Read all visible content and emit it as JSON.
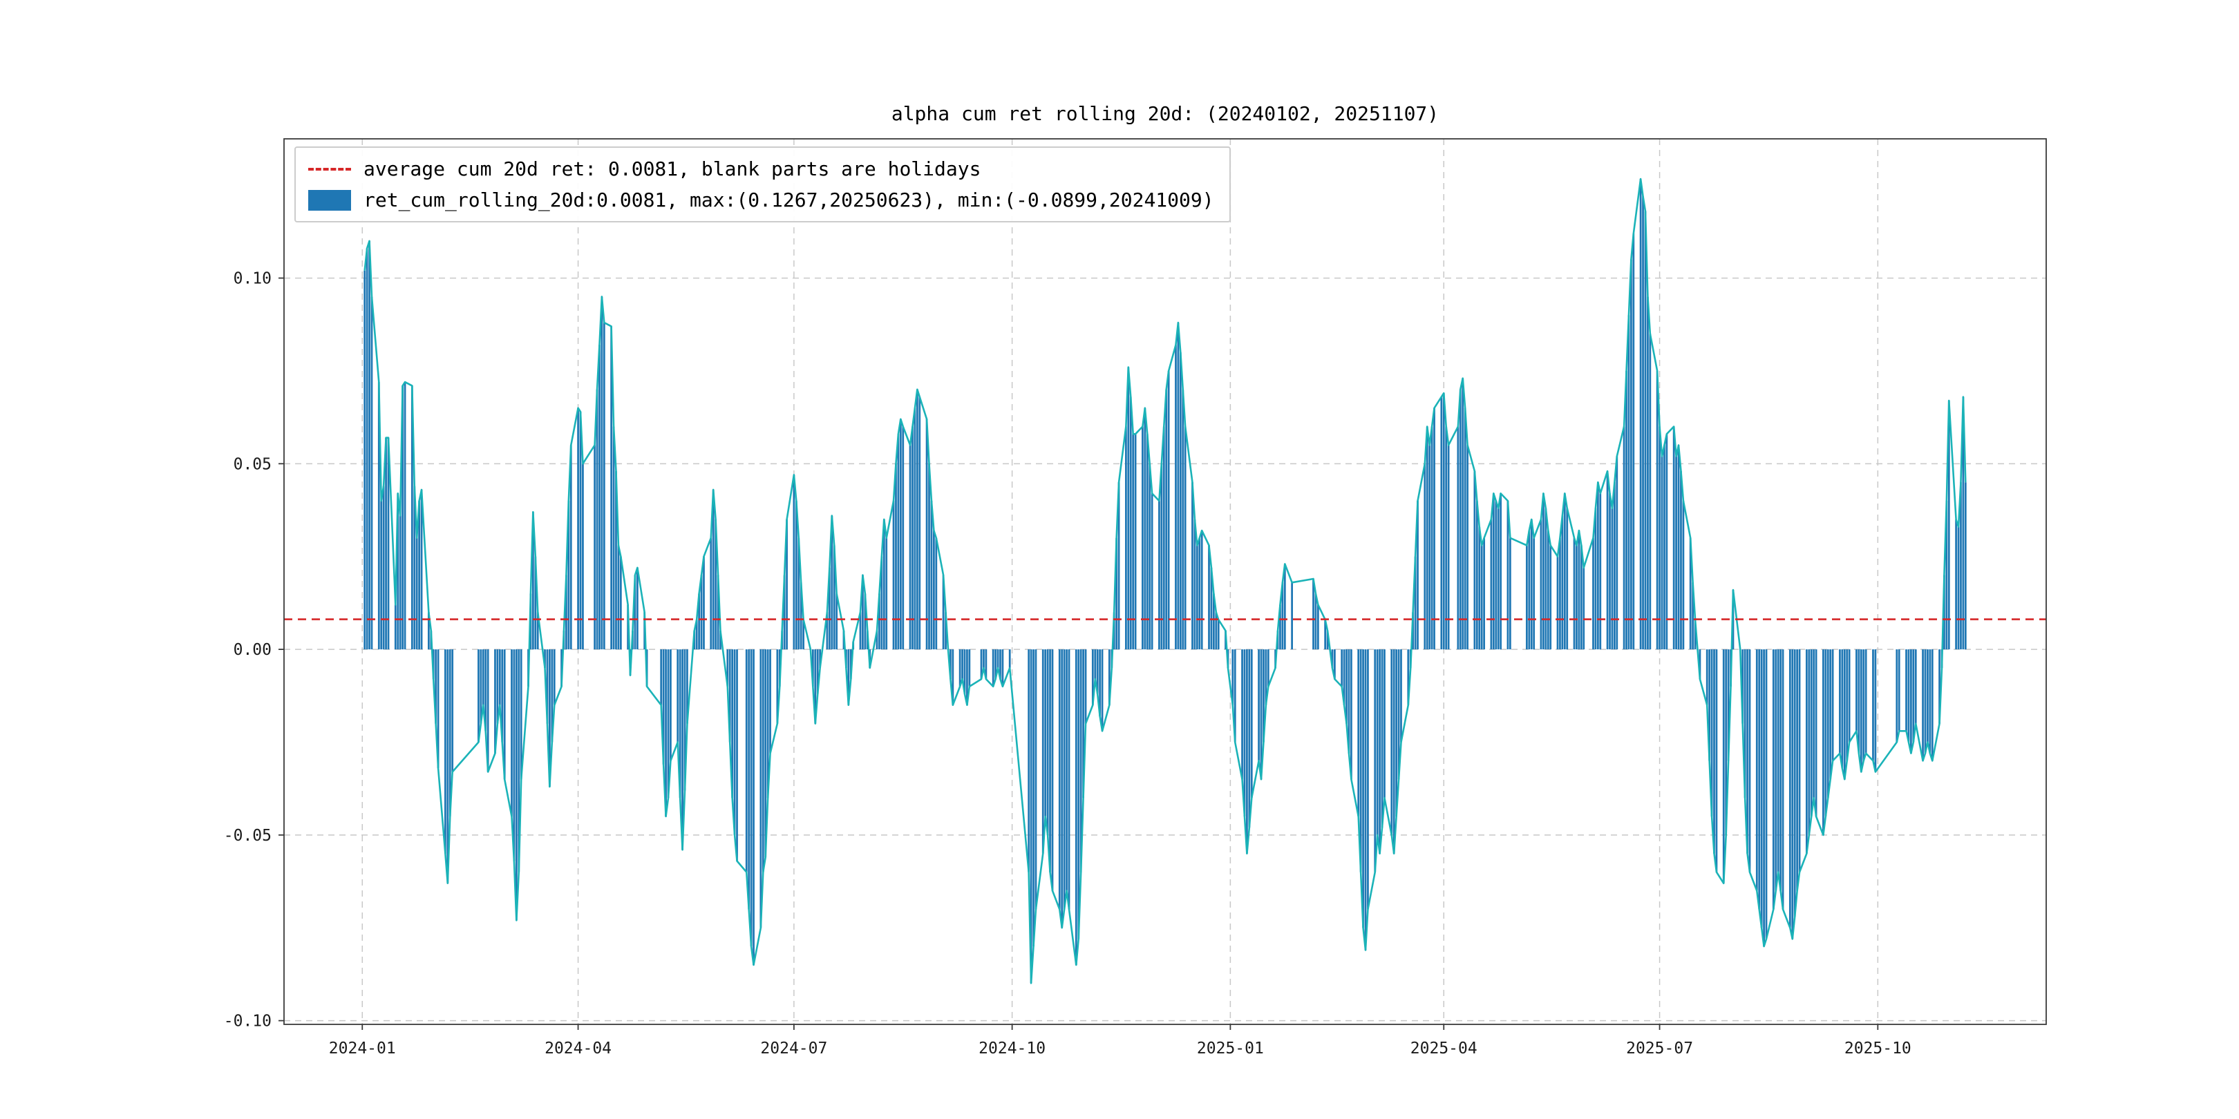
{
  "figure": {
    "background": "#ffffff"
  },
  "legend": {
    "entries": [
      {
        "type": "dashed-line",
        "color": "#d62728",
        "label": "average cum 20d ret: 0.0081, blank parts are holidays"
      },
      {
        "type": "bar",
        "color": "#1f77b4",
        "label": "ret_cum_rolling_20d:0.0081, max:(0.1267,20250623), min:(-0.0899,20241009)"
      }
    ]
  },
  "chart_data": {
    "type": "bar",
    "title": "alpha cum ret rolling 20d: (20240102, 20251107)",
    "series": [
      {
        "name": "ret_cum_rolling_20d",
        "render": "bar",
        "color": "#1f77b4"
      },
      {
        "name": "ret_cum_rolling_20d",
        "render": "line",
        "color": "#1bb3b8"
      }
    ],
    "average_line": {
      "value": 0.0081,
      "color": "#d62728",
      "style": "dashed"
    },
    "stats": {
      "average": 0.0081,
      "max": {
        "value": 0.1267,
        "date": "20250623"
      },
      "min": {
        "value": -0.0899,
        "date": "20241009"
      }
    },
    "date_range": {
      "start": "20240102",
      "end": "20251107"
    },
    "x_base_date": "2024-01-01",
    "xlim_days": [
      -33,
      710
    ],
    "ylim": [
      -0.101,
      0.1375
    ],
    "grid": true,
    "legend_position": "upper-left",
    "yticks": [
      {
        "value": 0.1,
        "label": "0.10"
      },
      {
        "value": 0.05,
        "label": "0.05"
      },
      {
        "value": 0.0,
        "label": "0.00"
      },
      {
        "value": -0.05,
        "label": "-0.05"
      },
      {
        "value": -0.1,
        "label": "-0.10"
      }
    ],
    "xticks": [
      {
        "day": 0,
        "label": "2024-01"
      },
      {
        "day": 91,
        "label": "2024-04"
      },
      {
        "day": 182,
        "label": "2024-07"
      },
      {
        "day": 274,
        "label": "2024-10"
      },
      {
        "day": 366,
        "label": "2025-01"
      },
      {
        "day": 456,
        "label": "2025-04"
      },
      {
        "day": 547,
        "label": "2025-07"
      },
      {
        "day": 639,
        "label": "2025-10"
      }
    ],
    "weekly_values_note": "97 weeks starting Monday 2024-01-01; 5 values per week (Mon-Fri); null = holiday/no trading (blank parts)",
    "weekly_values": [
      [
        null,
        0.102,
        0.108,
        0.11,
        0.095
      ],
      [
        0.072,
        0.04,
        0.044,
        0.057,
        0.057
      ],
      [
        0.012,
        0.042,
        0.036,
        0.071,
        0.072
      ],
      [
        0.071,
        0.044,
        0.03,
        0.04,
        0.043
      ],
      [
        0.01,
        0.005,
        -0.008,
        -0.02,
        -0.032
      ],
      [
        -0.055,
        -0.063,
        -0.045,
        -0.033,
        null
      ],
      [
        null,
        null,
        null,
        null,
        null
      ],
      [
        -0.025,
        -0.02,
        -0.015,
        -0.022,
        -0.033
      ],
      [
        -0.028,
        -0.02,
        -0.015,
        -0.025,
        -0.035
      ],
      [
        -0.045,
        -0.057,
        -0.073,
        -0.06,
        -0.035
      ],
      [
        -0.01,
        0.015,
        0.037,
        0.025,
        0.01
      ],
      [
        -0.005,
        -0.02,
        -0.037,
        -0.025,
        -0.015
      ],
      [
        -0.01,
        0.005,
        0.02,
        0.04,
        0.055
      ],
      [
        0.065,
        0.064,
        0.05,
        null,
        null
      ],
      [
        0.055,
        0.07,
        0.082,
        0.095,
        0.088
      ],
      [
        0.087,
        0.06,
        0.048,
        0.028,
        0.025
      ],
      [
        0.012,
        -0.007,
        0.005,
        0.02,
        0.022
      ],
      [
        0.01,
        -0.01,
        null,
        null,
        null
      ],
      [
        -0.015,
        -0.031,
        -0.045,
        -0.04,
        -0.03
      ],
      [
        -0.025,
        -0.04,
        -0.054,
        -0.038,
        -0.02
      ],
      [
        0.005,
        0.008,
        0.015,
        0.02,
        0.025
      ],
      [
        0.03,
        0.043,
        0.035,
        0.02,
        0.005
      ],
      [
        -0.01,
        -0.025,
        -0.04,
        -0.05,
        -0.057
      ],
      [
        null,
        -0.06,
        -0.07,
        -0.08,
        -0.085
      ],
      [
        -0.075,
        -0.06,
        -0.056,
        -0.04,
        -0.028
      ],
      [
        -0.02,
        -0.01,
        0.005,
        0.02,
        0.035
      ],
      [
        0.047,
        0.04,
        0.03,
        0.018,
        0.008
      ],
      [
        0.0,
        -0.01,
        -0.02,
        -0.012,
        -0.005
      ],
      [
        0.01,
        0.022,
        0.036,
        0.028,
        0.015
      ],
      [
        0.005,
        -0.005,
        -0.015,
        -0.008,
        0.002
      ],
      [
        0.01,
        0.02,
        0.015,
        0.005,
        -0.005
      ],
      [
        0.005,
        0.015,
        0.025,
        0.035,
        0.03
      ],
      [
        0.04,
        0.05,
        0.058,
        0.062,
        0.06
      ],
      [
        0.055,
        0.06,
        0.065,
        0.07,
        0.068
      ],
      [
        0.062,
        0.05,
        0.04,
        0.032,
        0.03
      ],
      [
        0.02,
        0.01,
        0.0,
        -0.008,
        -0.015
      ],
      [
        -0.01,
        -0.008,
        -0.012,
        -0.015,
        -0.01
      ],
      [
        null,
        null,
        -0.008,
        -0.005,
        -0.008
      ],
      [
        -0.01,
        -0.008,
        -0.005,
        -0.008,
        -0.01
      ],
      [
        -0.005,
        null,
        null,
        null,
        null
      ],
      [
        null,
        -0.06,
        -0.0899,
        -0.08,
        -0.07
      ],
      [
        -0.055,
        -0.045,
        -0.05,
        -0.06,
        -0.065
      ],
      [
        -0.07,
        -0.075,
        -0.07,
        -0.065,
        -0.07
      ],
      [
        -0.085,
        -0.078,
        -0.06,
        -0.04,
        -0.02
      ],
      [
        -0.015,
        -0.008,
        -0.012,
        -0.018,
        -0.022
      ],
      [
        -0.015,
        -0.005,
        0.01,
        0.03,
        0.045
      ],
      [
        0.06,
        0.076,
        0.068,
        0.058,
        0.058
      ],
      [
        0.06,
        0.065,
        0.058,
        0.05,
        0.042
      ],
      [
        0.04,
        0.05,
        0.06,
        0.07,
        0.075
      ],
      [
        0.082,
        0.088,
        0.08,
        0.07,
        0.06
      ],
      [
        0.045,
        0.035,
        0.028,
        0.03,
        0.032
      ],
      [
        0.028,
        0.022,
        0.015,
        0.01,
        0.008
      ],
      [
        0.005,
        -0.005,
        null,
        -0.015,
        -0.025
      ],
      [
        -0.035,
        -0.045,
        -0.055,
        -0.048,
        -0.04
      ],
      [
        -0.03,
        -0.035,
        -0.025,
        -0.015,
        -0.01
      ],
      [
        -0.005,
        0.005,
        0.012,
        0.018,
        0.023
      ],
      [
        0.018,
        null,
        null,
        null,
        null
      ],
      [
        null,
        null,
        0.019,
        0.015,
        0.012
      ],
      [
        0.008,
        0.005,
        0.0,
        -0.005,
        -0.008
      ],
      [
        -0.01,
        -0.015,
        -0.02,
        -0.028,
        -0.035
      ],
      [
        -0.045,
        -0.06,
        -0.075,
        -0.081,
        -0.07
      ],
      [
        -0.06,
        -0.05,
        -0.055,
        -0.048,
        -0.04
      ],
      [
        -0.05,
        -0.055,
        -0.045,
        -0.035,
        -0.025
      ],
      [
        -0.015,
        -0.005,
        0.01,
        0.025,
        0.04
      ],
      [
        0.05,
        0.06,
        0.055,
        0.06,
        0.065
      ],
      [
        0.068,
        0.069,
        0.06,
        0.055,
        null
      ],
      [
        0.06,
        0.07,
        0.073,
        0.065,
        0.055
      ],
      [
        0.048,
        0.04,
        0.033,
        0.028,
        0.03
      ],
      [
        0.035,
        0.042,
        0.04,
        0.038,
        0.042
      ],
      [
        0.04,
        0.03,
        null,
        null,
        null
      ],
      [
        null,
        0.028,
        0.032,
        0.035,
        0.03
      ],
      [
        0.035,
        0.042,
        0.038,
        0.032,
        0.028
      ],
      [
        0.025,
        0.03,
        0.036,
        0.042,
        0.038
      ],
      [
        0.03,
        0.028,
        0.032,
        0.028,
        0.022
      ],
      [
        null,
        0.03,
        0.038,
        0.045,
        0.042
      ],
      [
        0.048,
        0.042,
        0.038,
        0.045,
        0.052
      ],
      [
        0.06,
        0.075,
        0.09,
        0.105,
        0.112
      ],
      [
        0.1267,
        0.122,
        0.118,
        0.095,
        0.085
      ],
      [
        0.075,
        0.06,
        0.052,
        0.055,
        0.058
      ],
      [
        0.06,
        0.052,
        0.055,
        0.048,
        0.04
      ],
      [
        0.03,
        0.018,
        0.008,
        0.0,
        -0.008
      ],
      [
        -0.015,
        -0.03,
        -0.045,
        -0.055,
        -0.06
      ],
      [
        -0.063,
        -0.05,
        -0.03,
        -0.01,
        0.016
      ],
      [
        0.0,
        -0.02,
        -0.04,
        -0.055,
        -0.06
      ],
      [
        -0.065,
        -0.07,
        -0.075,
        -0.08,
        -0.078
      ],
      [
        -0.07,
        -0.065,
        -0.06,
        -0.065,
        -0.07
      ],
      [
        -0.075,
        -0.078,
        -0.072,
        -0.065,
        -0.06
      ],
      [
        -0.055,
        -0.05,
        -0.045,
        -0.04,
        -0.045
      ],
      [
        -0.05,
        -0.045,
        -0.04,
        -0.035,
        -0.03
      ],
      [
        -0.028,
        -0.032,
        -0.035,
        -0.03,
        -0.025
      ],
      [
        -0.022,
        -0.028,
        -0.033,
        -0.03,
        -0.028
      ],
      [
        -0.03,
        -0.033,
        null,
        null,
        null
      ],
      [
        null,
        null,
        null,
        -0.025,
        -0.022
      ],
      [
        -0.022,
        -0.025,
        -0.028,
        -0.025,
        -0.02
      ],
      [
        -0.03,
        -0.028,
        -0.025,
        -0.028,
        -0.03
      ],
      [
        -0.02,
        -0.005,
        0.02,
        0.04,
        0.067
      ],
      [
        0.035,
        0.033,
        0.045,
        0.068,
        0.045
      ]
    ]
  }
}
